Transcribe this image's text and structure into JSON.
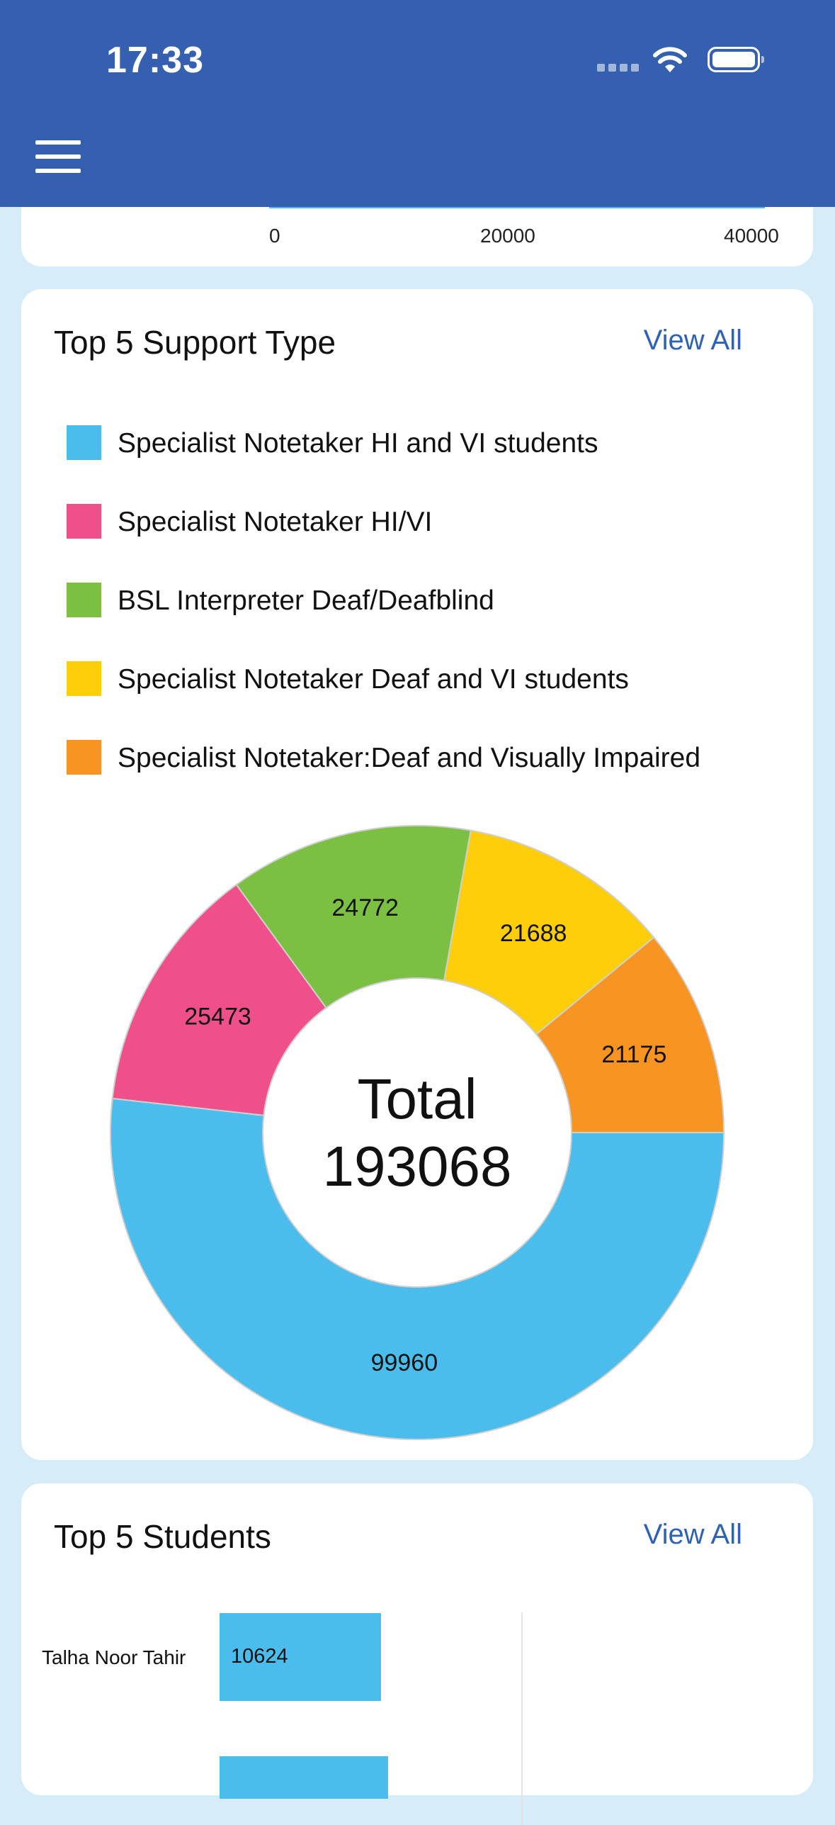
{
  "status_bar": {
    "time": "17:33"
  },
  "prev_chart": {
    "ticks": [
      "0",
      "20000",
      "40000"
    ]
  },
  "support_card": {
    "title": "Top 5 Support Type",
    "view_all": "View All",
    "center_label": "Total",
    "center_value": "193068"
  },
  "students_card": {
    "title": "Top 5 Students",
    "view_all": "View All"
  },
  "colors": {
    "header": "#3560af",
    "background": "#d6ecf9",
    "slice_blue": "#4bbdec",
    "slice_pink": "#f0508a",
    "slice_green": "#7cc043",
    "slice_yellow": "#fece0b",
    "slice_orange": "#f89422",
    "link": "#2f62b4"
  },
  "chart_data": [
    {
      "type": "pie",
      "title": "Top 5 Support Type",
      "labels": [
        "Specialist Notetaker HI and VI students",
        "Specialist Notetaker HI/VI",
        "BSL Interpreter Deaf/Deafblind",
        "Specialist Notetaker Deaf and VI students",
        "Specialist Notetaker:Deaf and Visually Impaired"
      ],
      "values": [
        99960,
        25473,
        24772,
        21688,
        21175
      ],
      "colors": [
        "#4bbdec",
        "#f0508a",
        "#7cc043",
        "#fece0b",
        "#f89422"
      ],
      "legend": "top"
    },
    {
      "type": "bar",
      "orientation": "horizontal",
      "title": "Top 5 Students",
      "categories": [
        "Talha Noor Tahir"
      ],
      "values": [
        10624
      ]
    }
  ]
}
